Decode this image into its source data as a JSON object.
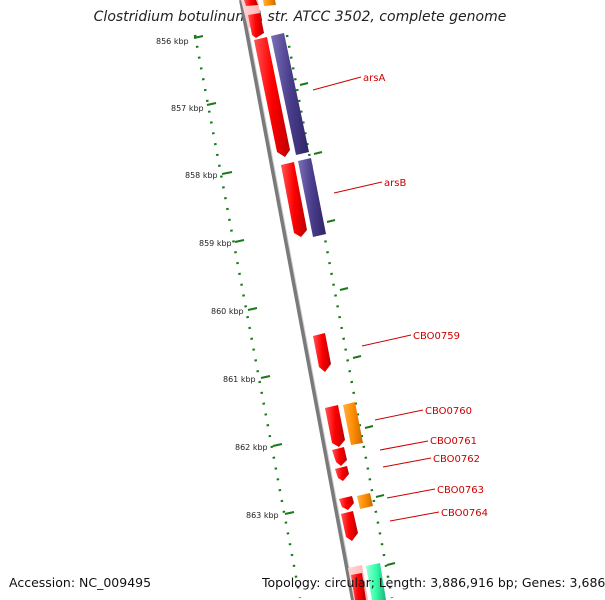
{
  "title": "Clostridium botulinum A str. ATCC 3502, complete genome",
  "footer": {
    "accession": "Accession: NC_009495",
    "topology": "Topology: circular; Length: 3,886,916 bp; Genes: 3,686"
  },
  "scale_ticks": [
    "856 kbp",
    "857 kbp",
    "858 kbp",
    "859 kbp",
    "860 kbp",
    "861 kbp",
    "862 kbp",
    "863 kbp"
  ],
  "gene_labels": [
    "arsA",
    "arsB",
    "CBO0759",
    "CBO0760",
    "CBO0761",
    "CBO0762",
    "CBO0763",
    "CBO0764"
  ],
  "colors": {
    "cds": "#ff0000",
    "cog_blue": "#4a3d8c",
    "cog_orange": "#ff8c00",
    "cog_cyan": "#33ffaa",
    "backbone": "#888888",
    "tick": "#1a7a1a",
    "label_line": "#cc0000"
  }
}
